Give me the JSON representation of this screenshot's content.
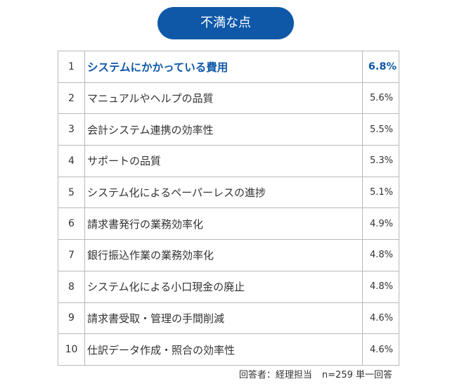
{
  "title": "不満な点",
  "rows": [
    {
      "rank": "1",
      "item": "システムにかかっている費用",
      "percent": "6.8%"
    },
    {
      "rank": "2",
      "item": "マニュアルやヘルプの品質",
      "percent": "5.6%"
    },
    {
      "rank": "3",
      "item": "会計システム連携の効率性",
      "percent": "5.5%"
    },
    {
      "rank": "4",
      "item": "サポートの品質",
      "percent": "5.3%"
    },
    {
      "rank": "5",
      "item": "システム化によるペーパーレスの進捗",
      "percent": "5.1%"
    },
    {
      "rank": "6",
      "item": "請求書発行の業務効率化",
      "percent": "4.9%"
    },
    {
      "rank": "7",
      "item": "銀行振込作業の業務効率化",
      "percent": "4.8%"
    },
    {
      "rank": "8",
      "item": "システム化による小口現金の廃止",
      "percent": "4.8%"
    },
    {
      "rank": "9",
      "item": "請求書受取・管理の手間削減",
      "percent": "4.6%"
    },
    {
      "rank": "10",
      "item": "仕訳データ作成・照合の効率性",
      "percent": "4.6%"
    }
  ],
  "footnote": {
    "respondents": "回答者：経理担当",
    "sample": "n=259 単一回答"
  },
  "colors": {
    "accent": "#0f58a8",
    "text": "#333333",
    "border": "#b9b9b9"
  }
}
